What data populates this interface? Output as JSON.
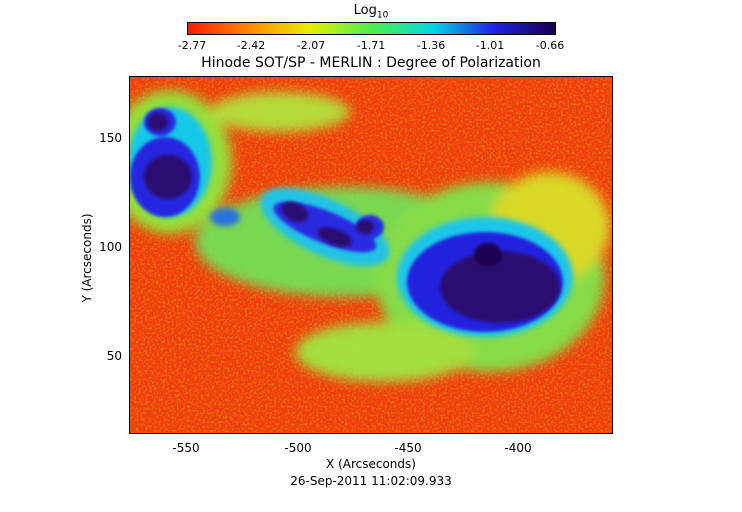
{
  "colorbar": {
    "label_main": "Log",
    "label_sub": "10",
    "ticks": [
      "-2.77",
      "-2.42",
      "-2.07",
      "-1.71",
      "-1.36",
      "-1.01",
      "-0.66"
    ],
    "colors": [
      "#ff1a00",
      "#ff8a00",
      "#e6f000",
      "#4cf04c",
      "#00d9e0",
      "#2020e8",
      "#1a004a"
    ]
  },
  "title": "Hinode SOT/SP - MERLIN : Degree of Polarization",
  "x_axis": {
    "label": "X (Arcseconds)",
    "ticks": [
      "-550",
      "-500",
      "-450",
      "-400"
    ]
  },
  "y_axis": {
    "label": "Y (Arcseconds)",
    "ticks": [
      "150",
      "100",
      "50"
    ]
  },
  "timestamp": "26-Sep-2011 11:02:09.933"
}
